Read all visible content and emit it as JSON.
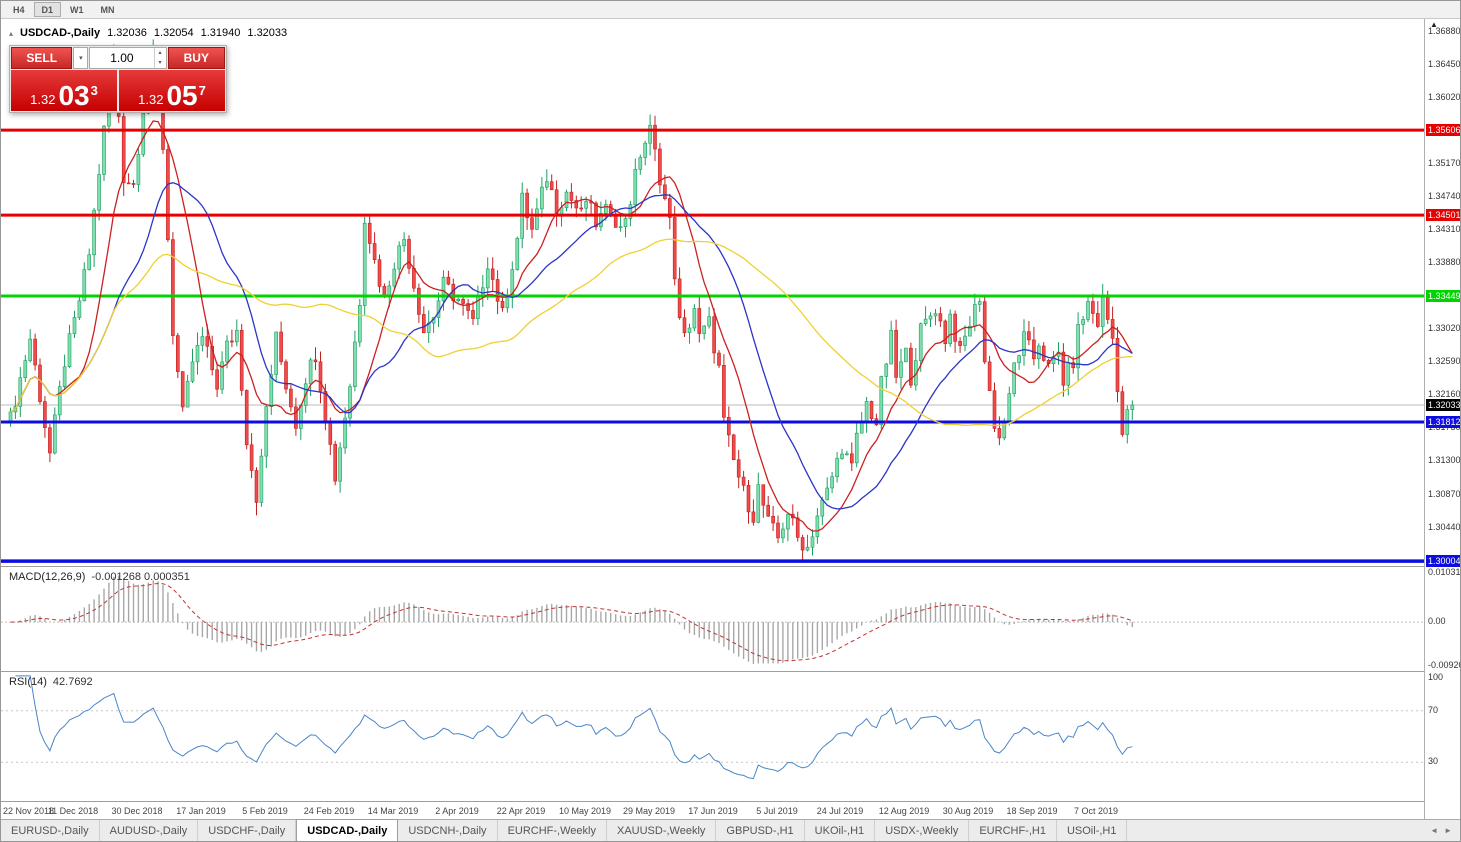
{
  "toolbar": {
    "timeframes": [
      {
        "label": "H4",
        "active": false
      },
      {
        "label": "D1",
        "active": true
      },
      {
        "label": "W1",
        "active": false
      },
      {
        "label": "MN",
        "active": false
      }
    ]
  },
  "chart": {
    "title": {
      "symbol": "USDCAD-,Daily",
      "open": "1.32036",
      "high": "1.32054",
      "low": "1.31940",
      "close": "1.32033"
    },
    "trade_panel": {
      "sell_label": "SELL",
      "buy_label": "BUY",
      "volume": "1.00",
      "bid": {
        "small": "1.32",
        "big": "03",
        "sup": "3"
      },
      "ask": {
        "small": "1.32",
        "big": "05",
        "sup": "7"
      }
    }
  },
  "chart_data": {
    "type": "candlestick",
    "symbol": "USDCAD",
    "timeframe": "Daily",
    "bars": 229,
    "x0": 8,
    "step": 4.92,
    "y_range": [
      1.2994,
      1.3705
    ],
    "y_ticks": [
      "1.36880",
      "1.36450",
      "1.36020",
      "1.35170",
      "1.34740",
      "1.34310",
      "1.33880",
      "1.33020",
      "1.32590",
      "1.32160",
      "1.31730",
      "1.31300",
      "1.30870",
      "1.30440"
    ],
    "levels": [
      {
        "price": 1.35606,
        "label": "1.35606",
        "color": "#e80000",
        "width": 3
      },
      {
        "price": 1.34501,
        "label": "1.34501",
        "color": "#e80000",
        "width": 3
      },
      {
        "price": 1.33449,
        "label": "1.33449",
        "color": "#00d400",
        "width": 3
      },
      {
        "price": 1.31812,
        "label": "1.31812",
        "color": "#0d0de0",
        "width": 3
      },
      {
        "price": 1.30004,
        "label": "1.30004",
        "color": "#0d0de0",
        "width": 3.5
      }
    ],
    "current_price": 1.32033,
    "current_label": "1.32033",
    "colors": {
      "up_fill": "#7fdfae",
      "up_stroke": "#1c9e60",
      "down_fill": "#ef4b4b",
      "down_stroke": "#c22020",
      "current_badge": "#000000",
      "current_line": "#bbbbbb"
    },
    "moving_averages": [
      {
        "name": "ma-fast-red-line",
        "period": 10,
        "color": "#cc2020"
      },
      {
        "name": "ma-mid-blue-line",
        "period": 22,
        "color": "#2b35c8"
      },
      {
        "name": "ma-slow-yellow-line",
        "period": 55,
        "color": "#f0d030"
      }
    ],
    "close_path": [
      [
        0,
        1.3185
      ],
      [
        4,
        1.329
      ],
      [
        8,
        1.314
      ],
      [
        11,
        1.326
      ],
      [
        13,
        1.331
      ],
      [
        16,
        1.34
      ],
      [
        19,
        1.356
      ],
      [
        21,
        1.366
      ],
      [
        23,
        1.35
      ],
      [
        25,
        1.349
      ],
      [
        27,
        1.359
      ],
      [
        29,
        1.3655
      ],
      [
        31,
        1.354
      ],
      [
        33,
        1.33
      ],
      [
        35,
        1.319
      ],
      [
        37,
        1.326
      ],
      [
        39,
        1.329
      ],
      [
        42,
        1.323
      ],
      [
        44,
        1.328
      ],
      [
        46,
        1.33
      ],
      [
        48,
        1.316
      ],
      [
        50,
        1.3085
      ],
      [
        51,
        1.313
      ],
      [
        52,
        1.32
      ],
      [
        54,
        1.329
      ],
      [
        56,
        1.323
      ],
      [
        58,
        1.318
      ],
      [
        60,
        1.324
      ],
      [
        62,
        1.327
      ],
      [
        64,
        1.319
      ],
      [
        66,
        1.311
      ],
      [
        69,
        1.323
      ],
      [
        71,
        1.334
      ],
      [
        72,
        1.345
      ],
      [
        74,
        1.339
      ],
      [
        76,
        1.334
      ],
      [
        78,
        1.339
      ],
      [
        80,
        1.342
      ],
      [
        82,
        1.336
      ],
      [
        84,
        1.33
      ],
      [
        86,
        1.332
      ],
      [
        88,
        1.336
      ],
      [
        91,
        1.334
      ],
      [
        94,
        1.331
      ],
      [
        97,
        1.339
      ],
      [
        100,
        1.332
      ],
      [
        103,
        1.342
      ],
      [
        104,
        1.347
      ],
      [
        106,
        1.343
      ],
      [
        109,
        1.35
      ],
      [
        111,
        1.346
      ],
      [
        113,
        1.348
      ],
      [
        116,
        1.345
      ],
      [
        117,
        1.347
      ],
      [
        119,
        1.344
      ],
      [
        122,
        1.346
      ],
      [
        124,
        1.343
      ],
      [
        126,
        1.347
      ],
      [
        128,
        1.353
      ],
      [
        130,
        1.356
      ],
      [
        132,
        1.35
      ],
      [
        134,
        1.344
      ],
      [
        136,
        1.331
      ],
      [
        137,
        1.329
      ],
      [
        139,
        1.333
      ],
      [
        140,
        1.329
      ],
      [
        142,
        1.331
      ],
      [
        144,
        1.325
      ],
      [
        145,
        1.318
      ],
      [
        147,
        1.313
      ],
      [
        149,
        1.309
      ],
      [
        151,
        1.306
      ],
      [
        152,
        1.3095
      ],
      [
        154,
        1.305
      ],
      [
        156,
        1.303
      ],
      [
        158,
        1.3065
      ],
      [
        160,
        1.303
      ],
      [
        162,
        1.3018
      ],
      [
        164,
        1.306
      ],
      [
        166,
        1.309
      ],
      [
        168,
        1.313
      ],
      [
        169,
        1.315
      ],
      [
        171,
        1.312
      ],
      [
        172,
        1.316
      ],
      [
        174,
        1.3205
      ],
      [
        176,
        1.318
      ],
      [
        177,
        1.323
      ],
      [
        179,
        1.329
      ],
      [
        180,
        1.324
      ],
      [
        182,
        1.327
      ],
      [
        183,
        1.324
      ],
      [
        185,
        1.33
      ],
      [
        187,
        1.332
      ],
      [
        188,
        1.333
      ],
      [
        190,
        1.329
      ],
      [
        191,
        1.332
      ],
      [
        193,
        1.327
      ],
      [
        195,
        1.331
      ],
      [
        197,
        1.3345
      ],
      [
        198,
        1.326
      ],
      [
        200,
        1.318
      ],
      [
        201,
        1.316
      ],
      [
        203,
        1.321
      ],
      [
        204,
        1.3255
      ],
      [
        206,
        1.329
      ],
      [
        208,
        1.3265
      ],
      [
        209,
        1.3285
      ],
      [
        211,
        1.325
      ],
      [
        213,
        1.327
      ],
      [
        214,
        1.3235
      ],
      [
        216,
        1.326
      ],
      [
        217,
        1.33
      ],
      [
        219,
        1.3335
      ],
      [
        221,
        1.331
      ],
      [
        222,
        1.334
      ],
      [
        224,
        1.329
      ],
      [
        225,
        1.323
      ],
      [
        226,
        1.3165
      ],
      [
        227,
        1.319
      ],
      [
        228,
        1.32033
      ]
    ],
    "x_labels": [
      "22 Nov 2018",
      "11 Dec 2018",
      "30 Dec 2018",
      "17 Jan 2019",
      "5 Feb 2019",
      "24 Feb 2019",
      "14 Mar 2019",
      "2 Apr 2019",
      "22 Apr 2019",
      "10 May 2019",
      "29 May 2019",
      "17 Jun 2019",
      "5 Jul 2019",
      "24 Jul 2019",
      "12 Aug 2019",
      "30 Aug 2019",
      "18 Sep 2019",
      "7 Oct 2019"
    ]
  },
  "macd": {
    "label": "MACD(12,26,9)",
    "values": "-0.001268 0.000351",
    "scale_top": "0.010311",
    "scale_mid": "0.00",
    "scale_bottom": "-0.009201",
    "map_max": 0.0116,
    "map_min": -0.0103,
    "colors": {
      "histogram": "#a8a8a8",
      "signal": "#c03434"
    }
  },
  "rsi": {
    "label": "RSI(14)",
    "value": "42.7692",
    "ticks": [
      "100",
      "70",
      "30"
    ],
    "levels": [
      70,
      30
    ],
    "color": "#4a86c8"
  },
  "tabbar": {
    "tabs": [
      {
        "label": "EURUSD-,Daily",
        "active": false
      },
      {
        "label": "AUDUSD-,Daily",
        "active": false
      },
      {
        "label": "USDCHF-,Daily",
        "active": false
      },
      {
        "label": "USDCAD-,Daily",
        "active": true
      },
      {
        "label": "USDCNH-,Daily",
        "active": false
      },
      {
        "label": "EURCHF-,Weekly",
        "active": false
      },
      {
        "label": "XAUUSD-,Weekly",
        "active": false
      },
      {
        "label": "GBPUSD-,H1",
        "active": false
      },
      {
        "label": "UKOil-,H1",
        "active": false
      },
      {
        "label": "USDX-,Weekly",
        "active": false
      },
      {
        "label": "EURCHF-,H1",
        "active": false
      },
      {
        "label": "USOil-,H1",
        "active": false
      }
    ]
  }
}
